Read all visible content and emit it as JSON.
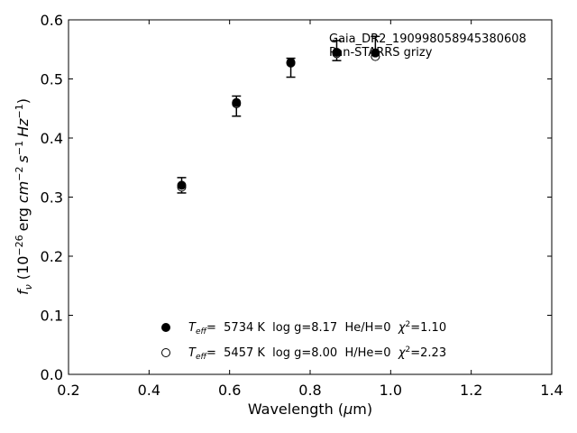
{
  "chart_data": {
    "type": "scatter",
    "annotation": [
      "Gaia_DR2_190998058945380608",
      "Pan-STARRS grizy"
    ],
    "xlabel": {
      "main": "Wavelength (",
      "unit_prefix": "μ",
      "unit": "m)"
    },
    "ylabel": {
      "symbol": "f",
      "symbol_sub": "ν",
      "prefix": "(10",
      "exp1": "−26",
      "erg": "erg",
      "cm": "cm",
      "exp2": "−2",
      "s": "s",
      "exp3": "−1",
      "hz": "Hz",
      "exp4": "−1",
      "suffix": ")"
    },
    "xlim": [
      0.2,
      1.4
    ],
    "ylim": [
      0.0,
      0.6
    ],
    "xticks": [
      0.2,
      0.4,
      0.6,
      0.8,
      1.0,
      1.2,
      1.4
    ],
    "yticks": [
      0.0,
      0.1,
      0.2,
      0.3,
      0.4,
      0.5,
      0.6
    ],
    "xtick_labels": [
      "0.2",
      "0.4",
      "0.6",
      "0.8",
      "1.0",
      "1.2",
      "1.4"
    ],
    "ytick_labels": [
      "0.0",
      "0.1",
      "0.2",
      "0.3",
      "0.4",
      "0.5",
      "0.6"
    ],
    "observed": {
      "x": [
        0.481,
        0.617,
        0.752,
        0.866,
        0.962
      ],
      "y": [
        0.32,
        0.454,
        0.519,
        0.548,
        0.555
      ],
      "yerr": [
        0.013,
        0.017,
        0.016,
        0.017,
        0.017
      ]
    },
    "series": [
      {
        "marker": "filled-circle",
        "x": [
          0.481,
          0.617,
          0.752,
          0.866,
          0.962
        ],
        "y": [
          0.32,
          0.46,
          0.528,
          0.545,
          0.544
        ],
        "legend": {
          "teff_label": "T",
          "teff_sub": "eff",
          "rest": "=  5734 K  log g=8.17  He/H=0  ",
          "chi": "χ",
          "chi_exp": "2",
          "chi_rest": "=1.10"
        }
      },
      {
        "marker": "open-circle",
        "x": [
          0.481,
          0.617,
          0.752,
          0.866,
          0.962
        ],
        "y": [
          0.317,
          0.458,
          0.527,
          0.543,
          0.538
        ],
        "legend": {
          "teff_label": "T",
          "teff_sub": "eff",
          "rest": "=  5457 K  log g=8.00  H/He=0  ",
          "chi": "χ",
          "chi_exp": "2",
          "chi_rest": "=2.23"
        }
      }
    ],
    "grid": false,
    "legend_position": "lower-center"
  }
}
